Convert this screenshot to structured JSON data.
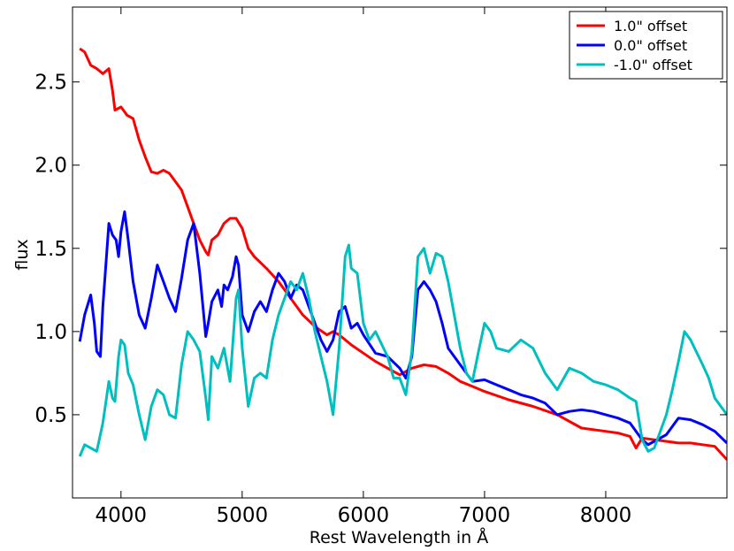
{
  "chart_data": {
    "type": "line",
    "title": "",
    "xlabel": "Rest Wavelength in Å",
    "ylabel": "flux",
    "xlim": [
      3600,
      9000
    ],
    "ylim": [
      0.0,
      2.95
    ],
    "xticks": [
      4000,
      5000,
      6000,
      7000,
      8000
    ],
    "xtick_labels": [
      "4000",
      "5000",
      "6000",
      "7000",
      "8000"
    ],
    "yticks": [
      0.5,
      1.0,
      1.5,
      2.0,
      2.5
    ],
    "ytick_labels": [
      "0.5",
      "1.0",
      "1.5",
      "2.0",
      "2.5"
    ],
    "grid": false,
    "legend": "top-right",
    "series": [
      {
        "name": "1.0\" offset",
        "color": "#ff0000",
        "x": [
          3660,
          3700,
          3750,
          3800,
          3850,
          3900,
          3930,
          3950,
          4000,
          4050,
          4100,
          4150,
          4200,
          4250,
          4300,
          4350,
          4400,
          4450,
          4500,
          4550,
          4600,
          4650,
          4700,
          4720,
          4750,
          4800,
          4850,
          4900,
          4950,
          5000,
          5050,
          5100,
          5200,
          5300,
          5400,
          5500,
          5600,
          5700,
          5750,
          5800,
          5900,
          6000,
          6100,
          6200,
          6300,
          6400,
          6500,
          6600,
          6700,
          6800,
          6900,
          7000,
          7200,
          7400,
          7600,
          7700,
          7800,
          8000,
          8100,
          8200,
          8250,
          8300,
          8400,
          8500,
          8600,
          8700,
          8800,
          8900,
          9000
        ],
        "y": [
          2.7,
          2.68,
          2.6,
          2.58,
          2.55,
          2.58,
          2.45,
          2.33,
          2.35,
          2.3,
          2.28,
          2.15,
          2.05,
          1.96,
          1.95,
          1.97,
          1.95,
          1.9,
          1.85,
          1.75,
          1.65,
          1.55,
          1.48,
          1.46,
          1.55,
          1.58,
          1.65,
          1.68,
          1.68,
          1.62,
          1.5,
          1.45,
          1.38,
          1.3,
          1.2,
          1.1,
          1.03,
          0.98,
          1.0,
          0.98,
          0.92,
          0.87,
          0.82,
          0.78,
          0.74,
          0.78,
          0.8,
          0.79,
          0.75,
          0.7,
          0.67,
          0.64,
          0.59,
          0.55,
          0.5,
          0.46,
          0.42,
          0.4,
          0.39,
          0.37,
          0.3,
          0.36,
          0.35,
          0.34,
          0.33,
          0.33,
          0.32,
          0.31,
          0.23
        ]
      },
      {
        "name": "0.0\" offset",
        "color": "#0000ff",
        "x": [
          3660,
          3700,
          3750,
          3780,
          3800,
          3830,
          3850,
          3900,
          3930,
          3960,
          3980,
          4000,
          4030,
          4060,
          4100,
          4150,
          4200,
          4250,
          4300,
          4350,
          4400,
          4450,
          4500,
          4550,
          4600,
          4650,
          4700,
          4720,
          4750,
          4800,
          4830,
          4850,
          4880,
          4920,
          4950,
          4970,
          5000,
          5050,
          5100,
          5150,
          5200,
          5250,
          5300,
          5350,
          5400,
          5450,
          5500,
          5600,
          5650,
          5700,
          5750,
          5800,
          5850,
          5900,
          5950,
          6000,
          6100,
          6200,
          6300,
          6350,
          6400,
          6450,
          6500,
          6550,
          6600,
          6650,
          6700,
          6800,
          6900,
          7000,
          7100,
          7200,
          7300,
          7400,
          7500,
          7600,
          7700,
          7800,
          7900,
          8000,
          8100,
          8200,
          8300,
          8350,
          8400,
          8500,
          8600,
          8700,
          8800,
          8900,
          9000
        ],
        "y": [
          0.94,
          1.1,
          1.22,
          1.05,
          0.88,
          0.85,
          1.15,
          1.65,
          1.58,
          1.55,
          1.45,
          1.6,
          1.72,
          1.55,
          1.3,
          1.1,
          1.02,
          1.2,
          1.4,
          1.3,
          1.2,
          1.12,
          1.32,
          1.55,
          1.65,
          1.35,
          0.97,
          1.05,
          1.18,
          1.25,
          1.15,
          1.28,
          1.25,
          1.33,
          1.45,
          1.4,
          1.1,
          1.0,
          1.12,
          1.18,
          1.12,
          1.25,
          1.35,
          1.3,
          1.2,
          1.28,
          1.25,
          1.05,
          0.95,
          0.88,
          0.95,
          1.12,
          1.15,
          1.02,
          1.05,
          0.98,
          0.87,
          0.85,
          0.78,
          0.72,
          0.85,
          1.25,
          1.3,
          1.25,
          1.18,
          1.05,
          0.9,
          0.8,
          0.7,
          0.71,
          0.68,
          0.65,
          0.62,
          0.6,
          0.57,
          0.5,
          0.52,
          0.53,
          0.52,
          0.5,
          0.48,
          0.45,
          0.35,
          0.32,
          0.34,
          0.38,
          0.48,
          0.47,
          0.44,
          0.4,
          0.33
        ]
      },
      {
        "name": "-1.0\" offset",
        "color": "#00bfbf",
        "x": [
          3660,
          3700,
          3750,
          3800,
          3850,
          3900,
          3930,
          3950,
          3980,
          4000,
          4030,
          4060,
          4100,
          4150,
          4200,
          4250,
          4300,
          4350,
          4400,
          4450,
          4500,
          4550,
          4600,
          4650,
          4700,
          4720,
          4750,
          4800,
          4850,
          4900,
          4950,
          4970,
          5000,
          5050,
          5100,
          5150,
          5200,
          5250,
          5300,
          5350,
          5400,
          5450,
          5500,
          5550,
          5600,
          5650,
          5700,
          5750,
          5800,
          5850,
          5880,
          5900,
          5950,
          6000,
          6050,
          6100,
          6200,
          6250,
          6300,
          6350,
          6400,
          6450,
          6500,
          6550,
          6600,
          6650,
          6700,
          6800,
          6850,
          6900,
          6950,
          7000,
          7050,
          7100,
          7200,
          7300,
          7400,
          7500,
          7600,
          7700,
          7800,
          7900,
          8000,
          8100,
          8200,
          8250,
          8300,
          8350,
          8400,
          8500,
          8550,
          8600,
          8650,
          8700,
          8800,
          8850,
          8900,
          9000
        ],
        "y": [
          0.25,
          0.32,
          0.3,
          0.28,
          0.45,
          0.7,
          0.6,
          0.58,
          0.85,
          0.95,
          0.92,
          0.75,
          0.68,
          0.5,
          0.35,
          0.55,
          0.65,
          0.62,
          0.5,
          0.48,
          0.8,
          1.0,
          0.95,
          0.88,
          0.6,
          0.47,
          0.85,
          0.78,
          0.9,
          0.7,
          1.2,
          1.25,
          0.9,
          0.55,
          0.72,
          0.75,
          0.72,
          0.95,
          1.1,
          1.2,
          1.3,
          1.25,
          1.35,
          1.2,
          1.0,
          0.85,
          0.7,
          0.5,
          0.9,
          1.45,
          1.52,
          1.38,
          1.35,
          1.05,
          0.95,
          1.0,
          0.85,
          0.72,
          0.72,
          0.62,
          0.88,
          1.45,
          1.5,
          1.35,
          1.47,
          1.45,
          1.3,
          0.9,
          0.75,
          0.7,
          0.88,
          1.05,
          1.0,
          0.9,
          0.88,
          0.95,
          0.9,
          0.75,
          0.65,
          0.78,
          0.75,
          0.7,
          0.68,
          0.65,
          0.6,
          0.58,
          0.35,
          0.28,
          0.3,
          0.5,
          0.65,
          0.82,
          1.0,
          0.95,
          0.8,
          0.72,
          0.6,
          0.5
        ]
      }
    ]
  }
}
